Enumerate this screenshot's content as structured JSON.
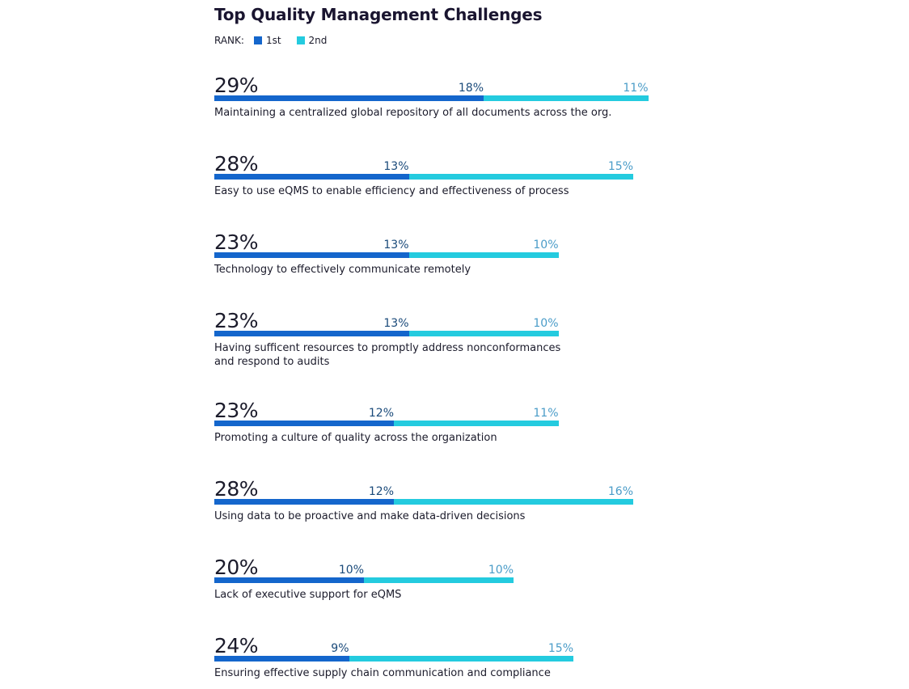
{
  "chart_data": {
    "type": "bar",
    "title": "Top Quality Management Challenges",
    "legend_title": "RANK:",
    "legend_placement": "top-left",
    "stacked": true,
    "orientation": "horizontal",
    "series": [
      {
        "name": "1st",
        "color": "#1466cc",
        "values": [
          18,
          13,
          13,
          13,
          12,
          12,
          10,
          9
        ]
      },
      {
        "name": "2nd",
        "color": "#24cbdf",
        "values": [
          11,
          15,
          10,
          10,
          11,
          16,
          10,
          15
        ]
      }
    ],
    "totals": [
      29,
      28,
      23,
      23,
      23,
      28,
      20,
      24
    ],
    "categories": [
      "Maintaining a centralized global repository of all documents across the org.",
      "Easy to use eQMS to enable efficiency and effectiveness of process",
      "Technology to effectively communicate remotely",
      "Having sufficent resources to promptly address nonconformances\nand respond to audits",
      "Promoting a culture of quality across the organization",
      "Using data to be proactive and make data-driven decisions",
      "Lack of executive support for eQMS",
      "Ensuring effective supply chain communication and compliance"
    ],
    "value_suffix": "%"
  }
}
